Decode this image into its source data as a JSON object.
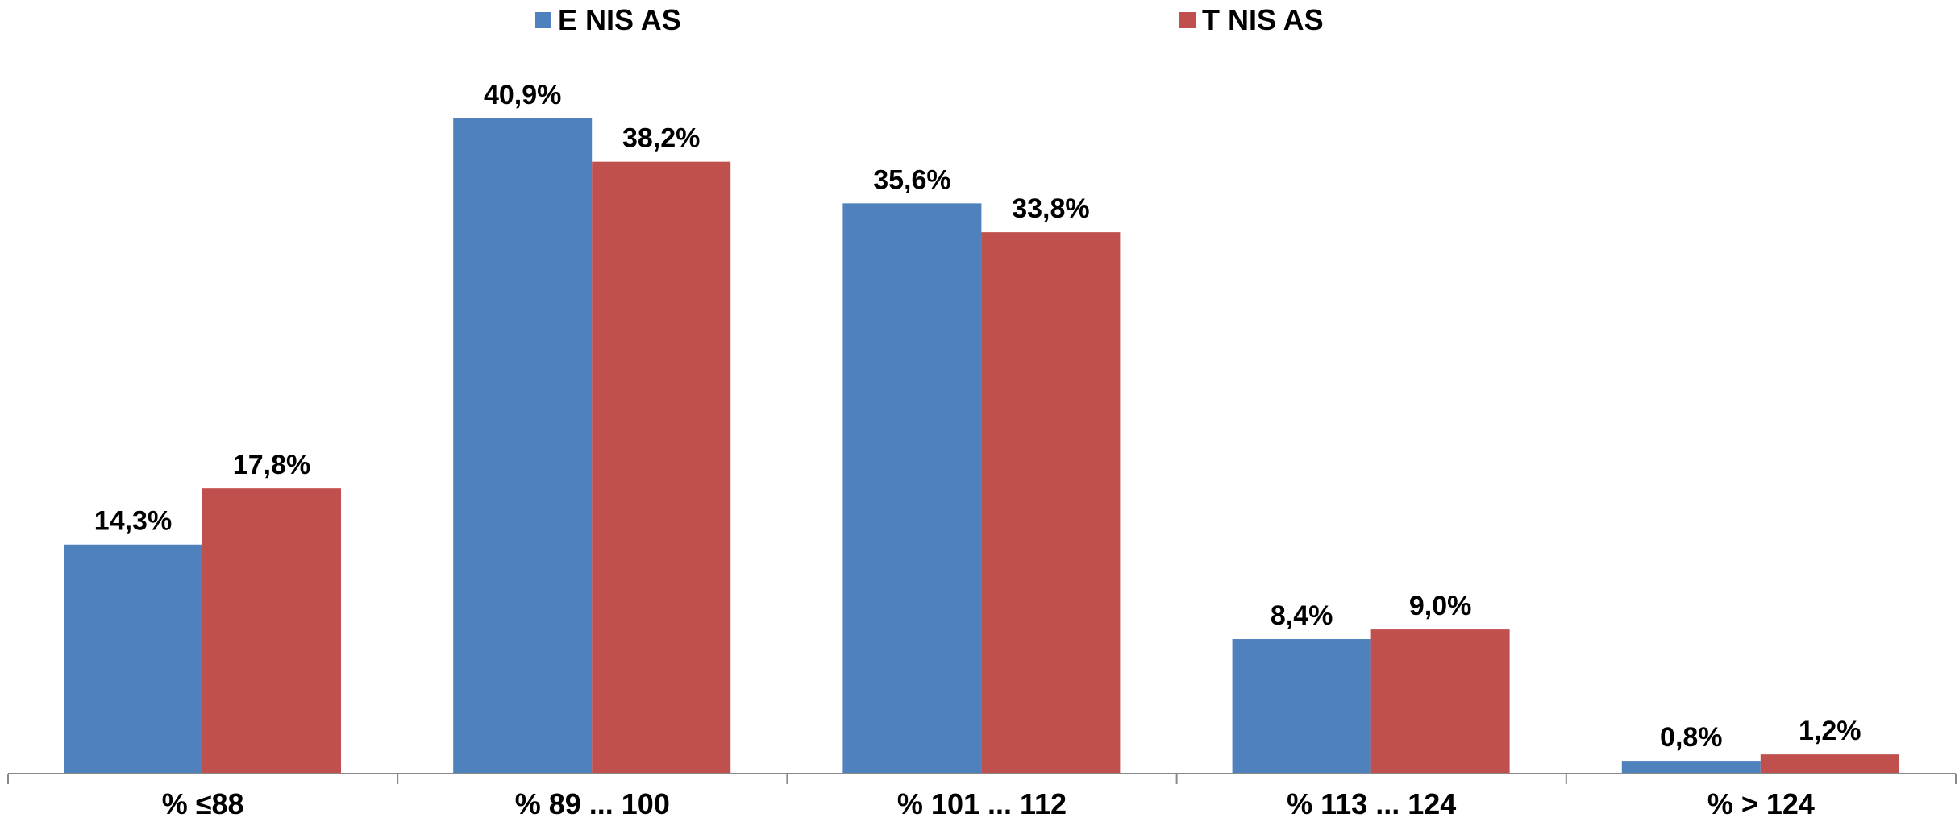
{
  "chart_data": {
    "type": "bar",
    "title": "",
    "xlabel": "",
    "ylabel": "",
    "categories": [
      "% ≤88",
      "% 89 ... 100",
      "% 101 ... 112",
      "% 113 ... 124",
      "% > 124"
    ],
    "series": [
      {
        "name": "E NIS AS",
        "color": "#4F81BD",
        "values": [
          14.3,
          40.9,
          35.6,
          8.4,
          0.8
        ],
        "labels": [
          "14,3%",
          "40,9%",
          "35,6%",
          "8,4%",
          "0,8%"
        ]
      },
      {
        "name": "T NIS AS",
        "color": "#C0504D",
        "values": [
          17.8,
          38.2,
          33.8,
          9.0,
          1.2
        ],
        "labels": [
          "17,8%",
          "38,2%",
          "33,8%",
          "9,0%",
          "1,2%"
        ]
      }
    ],
    "ylim": [
      0,
      40.9
    ],
    "grid": false,
    "legend_position": "top"
  }
}
